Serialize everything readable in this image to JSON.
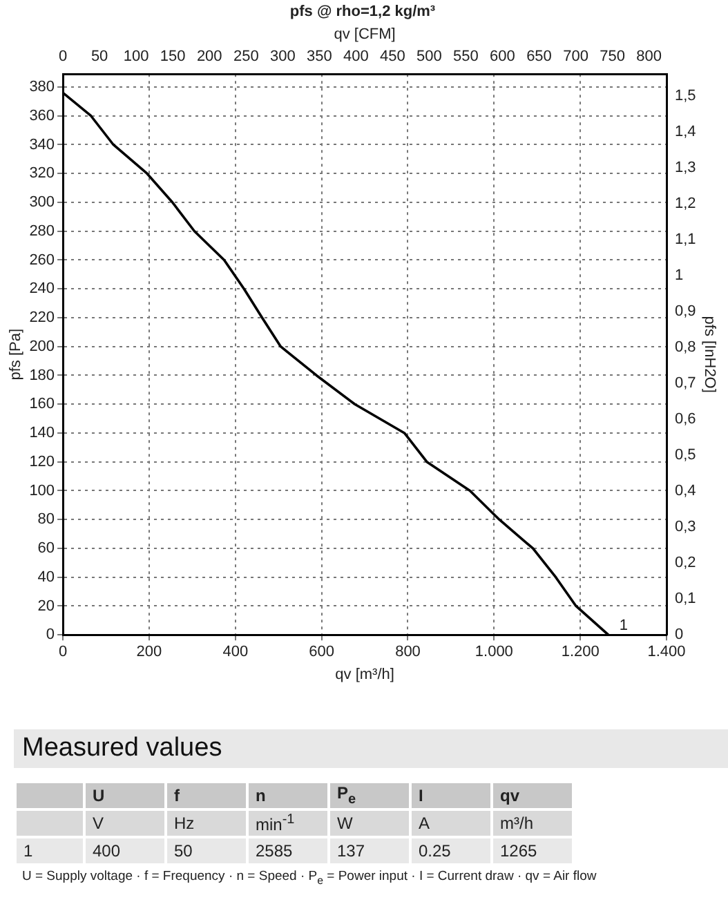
{
  "chart_data": [
    {
      "type": "line",
      "title": "pfs @ rho=1,2 kg/m³",
      "xlabel": "qv [m³/h]",
      "x2label": "qv [CFM]",
      "ylabel": "pfs [Pa]",
      "y2label": "pfs [InH2O]",
      "x": [
        0,
        65,
        117,
        195,
        254,
        305,
        374,
        420,
        462,
        505,
        588,
        677,
        792,
        844,
        944,
        1012,
        1090,
        1143,
        1190,
        1265
      ],
      "series": [
        {
          "color": "#000000",
          "values": [
            376,
            360,
            340,
            320,
            300,
            280,
            260,
            240,
            220,
            200,
            180,
            160,
            140,
            120,
            100,
            80,
            60,
            40,
            20,
            0
          ]
        }
      ],
      "xlim": [
        0,
        1400
      ],
      "xticks": [
        0,
        200,
        400,
        600,
        800,
        {
          "value": 1000,
          "label": "1.000"
        },
        {
          "value": 1200,
          "label": "1.200"
        },
        {
          "value": 1400,
          "label": "1.400"
        }
      ],
      "x2lim": [
        0,
        824
      ],
      "x2ticks": [
        0,
        50,
        100,
        150,
        200,
        250,
        300,
        350,
        400,
        450,
        500,
        550,
        600,
        650,
        700,
        750,
        800
      ],
      "ylim": [
        0,
        389
      ],
      "yticks": [
        0,
        20,
        40,
        60,
        80,
        100,
        120,
        140,
        160,
        180,
        200,
        220,
        240,
        260,
        280,
        300,
        320,
        340,
        360,
        380
      ],
      "y2lim": [
        0,
        1.562
      ],
      "y2ticks": [
        0,
        {
          "value": 0.1,
          "label": "0,1"
        },
        {
          "value": 0.2,
          "label": "0,2"
        },
        {
          "value": 0.3,
          "label": "0,3"
        },
        {
          "value": 0.4,
          "label": "0,4"
        },
        {
          "value": 0.5,
          "label": "0,5"
        },
        {
          "value": 0.6,
          "label": "0,6"
        },
        {
          "value": 0.7,
          "label": "0,7"
        },
        {
          "value": 0.8,
          "label": "0,8"
        },
        {
          "value": 0.9,
          "label": "0,9"
        },
        1,
        {
          "value": 1.1,
          "label": "1,1"
        },
        {
          "value": 1.2,
          "label": "1,2"
        },
        {
          "value": 1.3,
          "label": "1,3"
        },
        {
          "value": 1.4,
          "label": "1,4"
        },
        {
          "value": 1.5,
          "label": "1,5"
        }
      ],
      "grid": true,
      "annotations": [
        {
          "text": "1",
          "x": 1265,
          "y": 0
        }
      ]
    },
    {
      "type": "other",
      "title": "Measured values",
      "categories": [
        "U",
        "f",
        "n",
        "P$_{e}$",
        "I",
        "qv"
      ],
      "series": [
        {
          "name": "1",
          "values": [
            400,
            50,
            2585,
            137,
            0.25,
            1265
          ]
        }
      ],
      "data_labels": true,
      "annotations": [
        "V",
        "Hz",
        "min$^{-1}$",
        "W",
        "A",
        "m³/h",
        "U = Supply voltage · f = Frequency · n = Speed · P$_{e}$ = Power input · I = Current draw · qv = Air flow"
      ]
    }
  ]
}
